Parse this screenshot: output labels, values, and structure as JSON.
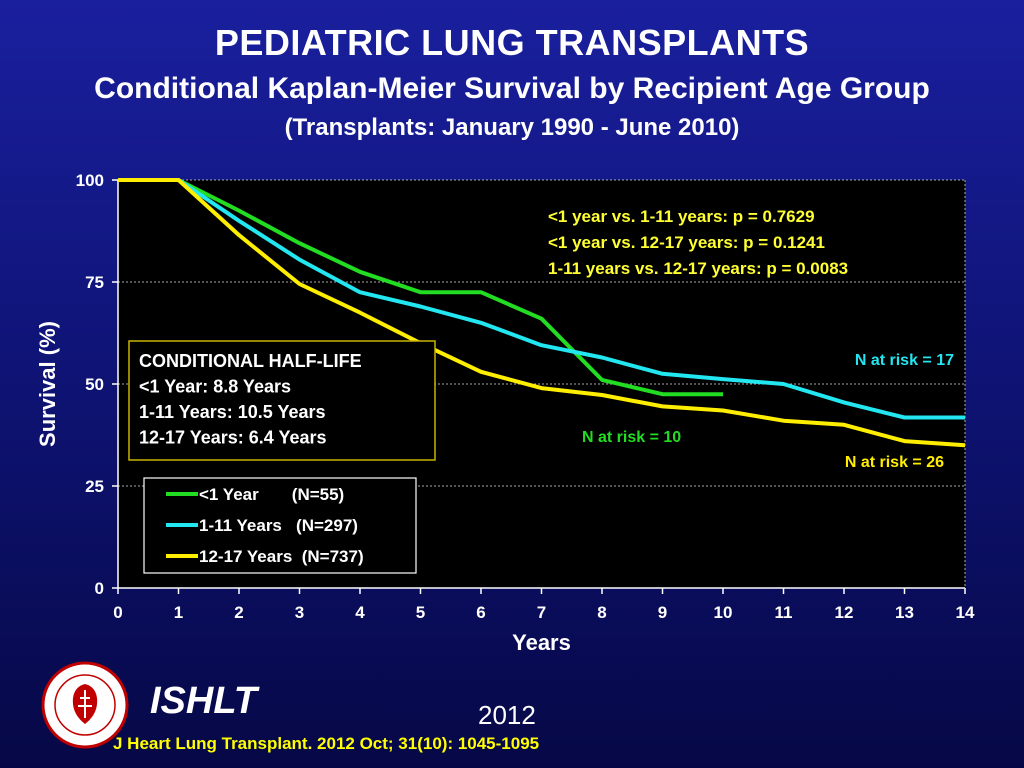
{
  "header": {
    "title": "PEDIATRIC LUNG TRANSPLANTS",
    "subtitle": "Conditional Kaplan-Meier Survival by Recipient Age Group",
    "subtitle2": "(Transplants: January 1990 - June 2010)"
  },
  "chart_data": {
    "type": "line",
    "xlabel": "Years",
    "ylabel": "Survival (%)",
    "xlim": [
      0,
      14
    ],
    "ylim": [
      0,
      100
    ],
    "x_ticks": [
      0,
      1,
      2,
      3,
      4,
      5,
      6,
      7,
      8,
      9,
      10,
      11,
      12,
      13,
      14
    ],
    "y_ticks": [
      0,
      25,
      50,
      75,
      100
    ],
    "grid": "horizontal dashed",
    "series": [
      {
        "name": "<1 Year       (N=55)",
        "color": "#22dd22",
        "x": [
          0,
          1,
          2,
          3,
          4,
          5,
          6,
          7,
          8,
          9,
          10
        ],
        "y": [
          100,
          100,
          92.5,
          84.5,
          77.5,
          72.5,
          72.5,
          66,
          51,
          47.5,
          47.5
        ]
      },
      {
        "name": "1-11 Years   (N=297)",
        "color": "#22e6f0",
        "x": [
          0,
          1,
          2,
          3,
          4,
          5,
          6,
          7,
          8,
          9,
          10,
          11,
          12,
          13,
          14
        ],
        "y": [
          100,
          100,
          90,
          80.5,
          72.5,
          69,
          65,
          59.5,
          56.5,
          52.5,
          51.2,
          50,
          45.5,
          41.8,
          41.8
        ]
      },
      {
        "name": "12-17 Years  (N=737)",
        "color": "#ffee00",
        "x": [
          0,
          1,
          2,
          3,
          4,
          5,
          6,
          7,
          8,
          9,
          10,
          11,
          12,
          13,
          14
        ],
        "y": [
          100,
          100,
          86.5,
          74.5,
          67.5,
          60,
          53,
          49,
          47.3,
          44.5,
          43.5,
          41,
          40,
          36,
          35
        ]
      }
    ],
    "annotations": {
      "pvalues": [
        "<1 year vs. 1-11 years: p = 0.7629",
        "<1 year vs. 12-17 years: p = 0.1241",
        "1-11 years vs. 12-17 years: p = 0.0083"
      ],
      "n_at_risk_cyan": "N at risk =  17",
      "n_at_risk_green": "N at risk = 10",
      "n_at_risk_yellow": "N at risk = 26",
      "half_life": [
        "CONDITIONAL HALF-LIFE",
        "<1 Year: 8.8 Years",
        "1-11 Years: 10.5 Years",
        "12-17 Years: 6.4 Years"
      ]
    }
  },
  "footer": {
    "brand": "ISHLT",
    "year": "2012",
    "citation": "J Heart Lung Transplant.  2012 Oct; 31(10): 1045-1095"
  },
  "colors": {
    "background": "#0f1478",
    "plot_background": "#000000",
    "pvalue_text": "#ffff33",
    "half_life_border": "#c8b400"
  }
}
